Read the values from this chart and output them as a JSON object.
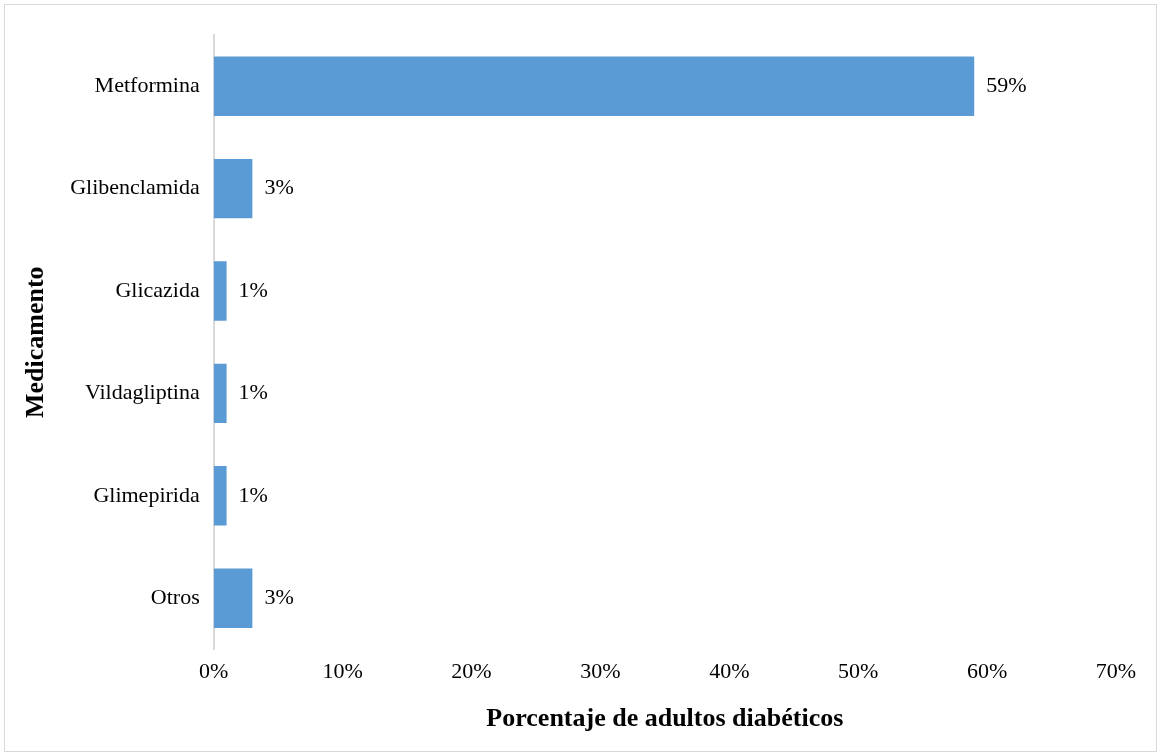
{
  "chart_data": {
    "type": "bar",
    "orientation": "horizontal",
    "xlabel": "Porcentaje de adultos diabéticos",
    "ylabel": "Medicamento",
    "categories": [
      "Metformina",
      "Glibenclamida",
      "Glicazida",
      "Vildagliptina",
      "Glimepirida",
      "Otros"
    ],
    "values": [
      59,
      3,
      1,
      1,
      1,
      3
    ],
    "color": "#5b9bd5",
    "value_labels": [
      "59%",
      "3%",
      "1%",
      "1%",
      "1%",
      "3%"
    ],
    "xlim": [
      0,
      70
    ],
    "xticks": [
      {
        "value": 0,
        "label": "0%"
      },
      {
        "value": 10,
        "label": "10%"
      },
      {
        "value": 20,
        "label": "20%"
      },
      {
        "value": 30,
        "label": "30%"
      },
      {
        "value": 40,
        "label": "40%"
      },
      {
        "value": 50,
        "label": "50%"
      },
      {
        "value": 60,
        "label": "60%"
      },
      {
        "value": 70,
        "label": "70%"
      }
    ],
    "grid": false,
    "legend": false
  }
}
